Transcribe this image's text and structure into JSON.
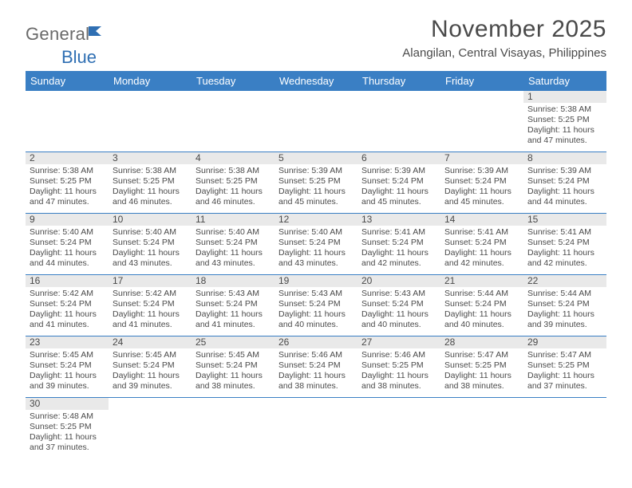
{
  "logo": {
    "text1": "General",
    "text2": "Blue"
  },
  "title": "November 2025",
  "location": "Alangilan, Central Visayas, Philippines",
  "colors": {
    "header_bg": "#3a7fc4",
    "logo_blue": "#2f6fb3",
    "text": "#4a4a4a",
    "daynum_bg": "#e9e9e9",
    "row_border": "#3a7fc4"
  },
  "day_names": [
    "Sunday",
    "Monday",
    "Tuesday",
    "Wednesday",
    "Thursday",
    "Friday",
    "Saturday"
  ],
  "weeks": [
    [
      {
        "n": "",
        "sr": "",
        "ss": "",
        "dl": ""
      },
      {
        "n": "",
        "sr": "",
        "ss": "",
        "dl": ""
      },
      {
        "n": "",
        "sr": "",
        "ss": "",
        "dl": ""
      },
      {
        "n": "",
        "sr": "",
        "ss": "",
        "dl": ""
      },
      {
        "n": "",
        "sr": "",
        "ss": "",
        "dl": ""
      },
      {
        "n": "",
        "sr": "",
        "ss": "",
        "dl": ""
      },
      {
        "n": "1",
        "sr": "Sunrise: 5:38 AM",
        "ss": "Sunset: 5:25 PM",
        "dl": "Daylight: 11 hours and 47 minutes."
      }
    ],
    [
      {
        "n": "2",
        "sr": "Sunrise: 5:38 AM",
        "ss": "Sunset: 5:25 PM",
        "dl": "Daylight: 11 hours and 47 minutes."
      },
      {
        "n": "3",
        "sr": "Sunrise: 5:38 AM",
        "ss": "Sunset: 5:25 PM",
        "dl": "Daylight: 11 hours and 46 minutes."
      },
      {
        "n": "4",
        "sr": "Sunrise: 5:38 AM",
        "ss": "Sunset: 5:25 PM",
        "dl": "Daylight: 11 hours and 46 minutes."
      },
      {
        "n": "5",
        "sr": "Sunrise: 5:39 AM",
        "ss": "Sunset: 5:25 PM",
        "dl": "Daylight: 11 hours and 45 minutes."
      },
      {
        "n": "6",
        "sr": "Sunrise: 5:39 AM",
        "ss": "Sunset: 5:24 PM",
        "dl": "Daylight: 11 hours and 45 minutes."
      },
      {
        "n": "7",
        "sr": "Sunrise: 5:39 AM",
        "ss": "Sunset: 5:24 PM",
        "dl": "Daylight: 11 hours and 45 minutes."
      },
      {
        "n": "8",
        "sr": "Sunrise: 5:39 AM",
        "ss": "Sunset: 5:24 PM",
        "dl": "Daylight: 11 hours and 44 minutes."
      }
    ],
    [
      {
        "n": "9",
        "sr": "Sunrise: 5:40 AM",
        "ss": "Sunset: 5:24 PM",
        "dl": "Daylight: 11 hours and 44 minutes."
      },
      {
        "n": "10",
        "sr": "Sunrise: 5:40 AM",
        "ss": "Sunset: 5:24 PM",
        "dl": "Daylight: 11 hours and 43 minutes."
      },
      {
        "n": "11",
        "sr": "Sunrise: 5:40 AM",
        "ss": "Sunset: 5:24 PM",
        "dl": "Daylight: 11 hours and 43 minutes."
      },
      {
        "n": "12",
        "sr": "Sunrise: 5:40 AM",
        "ss": "Sunset: 5:24 PM",
        "dl": "Daylight: 11 hours and 43 minutes."
      },
      {
        "n": "13",
        "sr": "Sunrise: 5:41 AM",
        "ss": "Sunset: 5:24 PM",
        "dl": "Daylight: 11 hours and 42 minutes."
      },
      {
        "n": "14",
        "sr": "Sunrise: 5:41 AM",
        "ss": "Sunset: 5:24 PM",
        "dl": "Daylight: 11 hours and 42 minutes."
      },
      {
        "n": "15",
        "sr": "Sunrise: 5:41 AM",
        "ss": "Sunset: 5:24 PM",
        "dl": "Daylight: 11 hours and 42 minutes."
      }
    ],
    [
      {
        "n": "16",
        "sr": "Sunrise: 5:42 AM",
        "ss": "Sunset: 5:24 PM",
        "dl": "Daylight: 11 hours and 41 minutes."
      },
      {
        "n": "17",
        "sr": "Sunrise: 5:42 AM",
        "ss": "Sunset: 5:24 PM",
        "dl": "Daylight: 11 hours and 41 minutes."
      },
      {
        "n": "18",
        "sr": "Sunrise: 5:43 AM",
        "ss": "Sunset: 5:24 PM",
        "dl": "Daylight: 11 hours and 41 minutes."
      },
      {
        "n": "19",
        "sr": "Sunrise: 5:43 AM",
        "ss": "Sunset: 5:24 PM",
        "dl": "Daylight: 11 hours and 40 minutes."
      },
      {
        "n": "20",
        "sr": "Sunrise: 5:43 AM",
        "ss": "Sunset: 5:24 PM",
        "dl": "Daylight: 11 hours and 40 minutes."
      },
      {
        "n": "21",
        "sr": "Sunrise: 5:44 AM",
        "ss": "Sunset: 5:24 PM",
        "dl": "Daylight: 11 hours and 40 minutes."
      },
      {
        "n": "22",
        "sr": "Sunrise: 5:44 AM",
        "ss": "Sunset: 5:24 PM",
        "dl": "Daylight: 11 hours and 39 minutes."
      }
    ],
    [
      {
        "n": "23",
        "sr": "Sunrise: 5:45 AM",
        "ss": "Sunset: 5:24 PM",
        "dl": "Daylight: 11 hours and 39 minutes."
      },
      {
        "n": "24",
        "sr": "Sunrise: 5:45 AM",
        "ss": "Sunset: 5:24 PM",
        "dl": "Daylight: 11 hours and 39 minutes."
      },
      {
        "n": "25",
        "sr": "Sunrise: 5:45 AM",
        "ss": "Sunset: 5:24 PM",
        "dl": "Daylight: 11 hours and 38 minutes."
      },
      {
        "n": "26",
        "sr": "Sunrise: 5:46 AM",
        "ss": "Sunset: 5:24 PM",
        "dl": "Daylight: 11 hours and 38 minutes."
      },
      {
        "n": "27",
        "sr": "Sunrise: 5:46 AM",
        "ss": "Sunset: 5:25 PM",
        "dl": "Daylight: 11 hours and 38 minutes."
      },
      {
        "n": "28",
        "sr": "Sunrise: 5:47 AM",
        "ss": "Sunset: 5:25 PM",
        "dl": "Daylight: 11 hours and 38 minutes."
      },
      {
        "n": "29",
        "sr": "Sunrise: 5:47 AM",
        "ss": "Sunset: 5:25 PM",
        "dl": "Daylight: 11 hours and 37 minutes."
      }
    ],
    [
      {
        "n": "30",
        "sr": "Sunrise: 5:48 AM",
        "ss": "Sunset: 5:25 PM",
        "dl": "Daylight: 11 hours and 37 minutes."
      },
      {
        "n": "",
        "sr": "",
        "ss": "",
        "dl": ""
      },
      {
        "n": "",
        "sr": "",
        "ss": "",
        "dl": ""
      },
      {
        "n": "",
        "sr": "",
        "ss": "",
        "dl": ""
      },
      {
        "n": "",
        "sr": "",
        "ss": "",
        "dl": ""
      },
      {
        "n": "",
        "sr": "",
        "ss": "",
        "dl": ""
      },
      {
        "n": "",
        "sr": "",
        "ss": "",
        "dl": ""
      }
    ]
  ]
}
